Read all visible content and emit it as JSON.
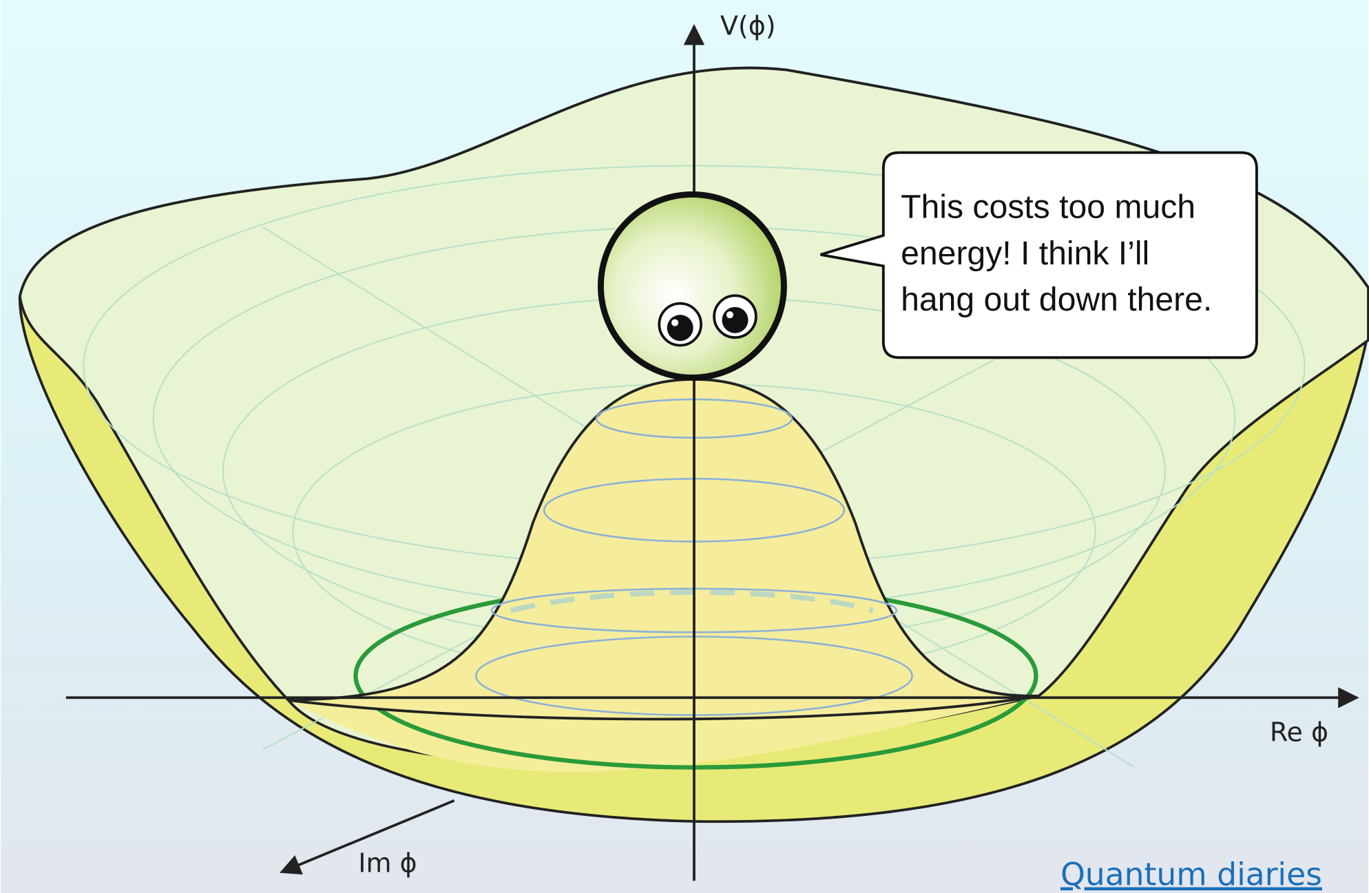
{
  "axes": {
    "vertical": "V(ϕ)",
    "real": "Re ϕ",
    "imaginary": "Im ϕ"
  },
  "speech_bubble": {
    "lines": [
      "This costs too much",
      "energy! I think I’ll",
      "hang out down there."
    ]
  },
  "credit": {
    "link": "Quantum diaries"
  }
}
